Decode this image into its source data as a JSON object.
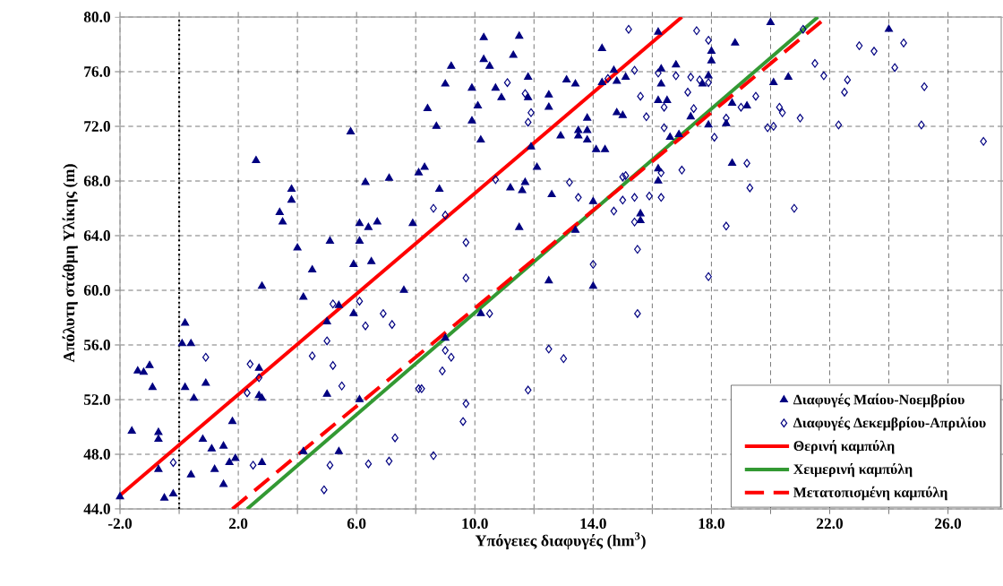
{
  "chart_data": {
    "type": "scatter",
    "xlabel": "Υπόγειες διαφυγές (hm$^{3}$)",
    "ylabel": "Απόλυτη στάθμη Υλίκης (m)",
    "xlim": [
      -2,
      27.8
    ],
    "ylim": [
      44,
      80
    ],
    "xticks": [
      {
        "value": -2,
        "label": "-2.0"
      },
      {
        "value": 0,
        "label": null
      },
      {
        "value": 2,
        "label": "2.0"
      },
      {
        "value": 4,
        "label": null
      },
      {
        "value": 6,
        "label": "6.0"
      },
      {
        "value": 8,
        "label": null
      },
      {
        "value": 10,
        "label": "10.0"
      },
      {
        "value": 12,
        "label": null
      },
      {
        "value": 14,
        "label": "14.0"
      },
      {
        "value": 16,
        "label": null
      },
      {
        "value": 18,
        "label": "18.0"
      },
      {
        "value": 20,
        "label": null
      },
      {
        "value": 22,
        "label": "22.0"
      },
      {
        "value": 24,
        "label": null
      },
      {
        "value": 26,
        "label": "26.0"
      }
    ],
    "yticks": [
      {
        "value": 44,
        "label": "44.0"
      },
      {
        "value": 48,
        "label": "48.0"
      },
      {
        "value": 52,
        "label": "52.0"
      },
      {
        "value": 56,
        "label": "56.0"
      },
      {
        "value": 60,
        "label": "60.0"
      },
      {
        "value": 64,
        "label": "64.0"
      },
      {
        "value": 68,
        "label": "68.0"
      },
      {
        "value": 72,
        "label": "72.0"
      },
      {
        "value": 76,
        "label": "76.0"
      },
      {
        "value": 80,
        "label": "80.0"
      }
    ],
    "grid": true,
    "legend": "bottom right",
    "ref_lines": [
      {
        "axis": "x",
        "value": 0,
        "color": "#000000",
        "line_style": "dotted"
      }
    ],
    "series": [
      {
        "name": "Διαφυγές Μαίου-Νοεμβρίου",
        "type": "scatter",
        "marker": "triangle",
        "color": "#000080",
        "x": [
          -2.0,
          -1.6,
          0.2,
          0.1,
          0.4,
          -1.4,
          -1.2,
          -1.0,
          -0.9,
          0.2,
          0.5,
          0.9,
          2.8,
          2.7,
          2.7,
          2.8,
          1.8,
          -0.7,
          -0.7,
          -0.7,
          0.8,
          1.1,
          1.5,
          1.7,
          1.9,
          1.2,
          0.4,
          1.5,
          -0.5,
          -0.2,
          4.2,
          5.4,
          5.0,
          6.1,
          5.0,
          5.4,
          5.9,
          4.2,
          4.5,
          5.9,
          6.5,
          7.6,
          5.8,
          2.6,
          3.8,
          3.8,
          3.4,
          3.5,
          6.3,
          7.1,
          8.1,
          6.1,
          6.4,
          6.7,
          7.9,
          4.0,
          5.1,
          6.1,
          10.3,
          11.5,
          10.3,
          11.3,
          10.5,
          9.2,
          9.0,
          9.9,
          10.7,
          10.9,
          10.1,
          8.4,
          8.7,
          9.9,
          10.2,
          11.8,
          11.8,
          12.5,
          12.5,
          13.1,
          13.4,
          14.3,
          16.2,
          14.7,
          14.8,
          15.1,
          14.3,
          16.3,
          16.8,
          16.3,
          16.2,
          16.5,
          14.8,
          15.0,
          13.8,
          13.5,
          13.8,
          13.5,
          13.8,
          14.1,
          14.4,
          12.9,
          11.9,
          12.1,
          8.3,
          8.8,
          11.2,
          11.6,
          11.7,
          12.6,
          14.0,
          11.5,
          13.4,
          16.2,
          16.2,
          15.6,
          15.6,
          17.3,
          17.9,
          16.6,
          16.9,
          18.0,
          18.0,
          17.9,
          17.7,
          20.0,
          18.8,
          20.1,
          20.6,
          18.7,
          19.2,
          18.5,
          18.7,
          24.0,
          12.5,
          14.0,
          10.2,
          9.0,
          2.8
        ],
        "values": [
          44.9,
          49.7,
          57.6,
          56.1,
          56.1,
          54.1,
          54.0,
          54.5,
          52.9,
          52.9,
          52.1,
          53.2,
          60.3,
          54.3,
          52.3,
          52.1,
          50.4,
          49.6,
          49.1,
          46.9,
          49.1,
          48.4,
          48.6,
          47.4,
          47.7,
          46.9,
          46.5,
          45.8,
          44.8,
          45.1,
          48.2,
          48.2,
          52.4,
          52.0,
          57.7,
          58.9,
          58.3,
          59.5,
          61.5,
          61.9,
          62.1,
          60.0,
          71.6,
          69.5,
          67.4,
          66.6,
          65.7,
          65.0,
          67.9,
          68.2,
          68.6,
          64.9,
          64.6,
          65.0,
          64.9,
          63.1,
          63.6,
          63.6,
          78.5,
          78.6,
          76.9,
          77.2,
          76.4,
          76.4,
          75.1,
          74.8,
          74.8,
          74.1,
          73.5,
          73.3,
          72.0,
          72.4,
          71.0,
          75.6,
          74.1,
          74.3,
          73.4,
          75.4,
          75.1,
          77.7,
          78.9,
          76.1,
          75.3,
          75.6,
          75.2,
          76.2,
          76.5,
          75.1,
          73.9,
          73.9,
          73.0,
          72.8,
          72.6,
          71.7,
          71.7,
          71.3,
          71.0,
          70.3,
          70.3,
          71.3,
          70.5,
          69.0,
          69.0,
          67.4,
          67.5,
          67.3,
          67.9,
          67.0,
          66.5,
          64.6,
          64.4,
          68.9,
          68.0,
          65.6,
          65.1,
          72.7,
          72.1,
          71.2,
          71.4,
          77.5,
          76.8,
          75.7,
          75.1,
          79.6,
          78.1,
          75.2,
          75.6,
          73.7,
          73.5,
          72.2,
          69.3,
          79.1,
          60.7,
          60.3,
          58.3,
          56.5,
          47.4
        ]
      },
      {
        "name": "Διαφυγές Δεκεμβρίου-Απριλίου",
        "type": "scatter",
        "marker": "diamond",
        "color": "#000080",
        "x": [
          0.9,
          2.4,
          2.7,
          2.3,
          -0.2,
          2.5,
          5.2,
          6.1,
          5.0,
          4.5,
          5.2,
          5.5,
          6.3,
          6.9,
          7.2,
          7.3,
          5.1,
          6.4,
          7.1,
          4.9,
          8.1,
          14.0,
          17.9,
          9.7,
          10.5,
          15.5,
          9.0,
          9.2,
          8.9,
          8.2,
          12.5,
          13.0,
          11.8,
          9.7,
          9.6,
          8.6,
          11.1,
          11.7,
          11.9,
          11.8,
          10.7,
          9.0,
          8.6,
          9.7,
          13.2,
          13.5,
          15.0,
          15.1,
          15.0,
          15.4,
          15.9,
          16.3,
          14.7,
          15.4,
          15.5,
          15.2,
          14.5,
          15.4,
          15.6,
          15.8,
          17.5,
          17.9,
          16.2,
          16.8,
          17.3,
          17.6,
          17.9,
          17.2,
          17.4,
          16.4,
          16.4,
          18.1,
          17.0,
          16.3,
          21.1,
          21.5,
          21.8,
          23.0,
          23.5,
          24.5,
          24.2,
          22.6,
          22.5,
          25.2,
          19.5,
          19.0,
          20.3,
          20.4,
          18.5,
          21.0,
          19.9,
          20.1,
          22.3,
          25.1,
          27.2,
          19.2,
          19.3,
          20.8,
          18.5
        ],
        "values": [
          55.1,
          54.6,
          53.6,
          52.5,
          47.4,
          47.2,
          59.0,
          59.2,
          56.3,
          55.2,
          54.5,
          53.0,
          57.4,
          58.3,
          57.5,
          49.2,
          47.2,
          47.3,
          47.5,
          45.4,
          52.8,
          61.9,
          61.0,
          60.9,
          58.3,
          58.3,
          55.6,
          55.1,
          54.1,
          52.8,
          55.7,
          55.0,
          52.7,
          51.7,
          50.4,
          47.9,
          75.2,
          74.4,
          73.0,
          72.3,
          68.1,
          65.5,
          66.0,
          63.5,
          67.9,
          66.8,
          68.3,
          68.4,
          66.6,
          66.8,
          66.9,
          66.8,
          65.8,
          65.0,
          63.0,
          79.1,
          75.5,
          76.1,
          74.2,
          72.7,
          79.0,
          78.3,
          75.9,
          75.7,
          75.6,
          75.4,
          75.2,
          74.5,
          73.3,
          73.4,
          71.9,
          71.2,
          68.8,
          68.6,
          79.1,
          76.6,
          75.7,
          77.9,
          77.5,
          78.1,
          76.3,
          75.4,
          74.5,
          74.9,
          74.2,
          73.4,
          73.4,
          73.0,
          72.6,
          72.6,
          71.9,
          72.0,
          72.1,
          72.1,
          70.9,
          69.3,
          67.5,
          66.0,
          64.7
        ]
      },
      {
        "name": "Θερινή καμπύλη",
        "type": "line",
        "line_style": "solid",
        "color": "#ff0000",
        "x": [
          -2.0,
          17.0
        ],
        "values": [
          45.0,
          80.0
        ]
      },
      {
        "name": "Χειμερινή καμπύλη",
        "type": "line",
        "line_style": "solid",
        "color": "#339933",
        "x": [
          2.3,
          21.6
        ],
        "values": [
          44.0,
          80.0
        ]
      },
      {
        "name": "Μετατοπισμένη καμπύλη",
        "type": "line",
        "line_style": "dashed",
        "color": "#ff0000",
        "x": [
          1.8,
          21.9
        ],
        "values": [
          44.0,
          80.0
        ]
      }
    ]
  }
}
